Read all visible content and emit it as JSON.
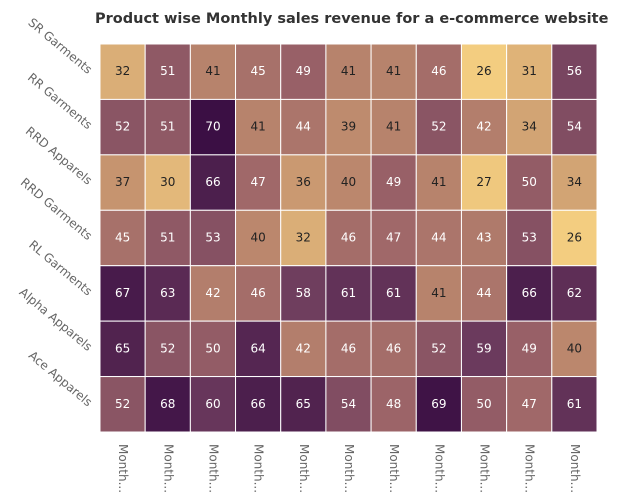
{
  "chart_data": {
    "type": "heatmap",
    "title": "Product wise Monthly sales revenue for a e-commerce website",
    "x": [
      "Month...",
      "Month...",
      "Month...",
      "Month...",
      "Month...",
      "Month...",
      "Month...",
      "Month...",
      "Month...",
      "Month...",
      "Month..."
    ],
    "y": [
      "SR Garments",
      "RR Garments",
      "RRD Apparels",
      "RRD Garments",
      "RL Garments",
      "Alpha Apparels",
      "Ace Apparels"
    ],
    "values": [
      [
        32,
        51,
        41,
        45,
        49,
        41,
        41,
        46,
        26,
        31,
        56
      ],
      [
        52,
        51,
        70,
        41,
        44,
        39,
        41,
        52,
        42,
        34,
        54
      ],
      [
        37,
        30,
        66,
        47,
        36,
        40,
        49,
        41,
        27,
        50,
        34
      ],
      [
        45,
        51,
        53,
        40,
        32,
        46,
        47,
        44,
        43,
        53,
        26
      ],
      [
        67,
        63,
        42,
        46,
        58,
        61,
        61,
        41,
        44,
        66,
        62
      ],
      [
        65,
        52,
        50,
        64,
        42,
        46,
        46,
        52,
        59,
        49,
        40
      ],
      [
        52,
        68,
        60,
        66,
        65,
        54,
        48,
        69,
        50,
        47,
        61
      ]
    ],
    "colors": [
      "#f3cd80",
      "#c6946f",
      "#9c6468",
      "#6b3a5d",
      "#3b0f44"
    ]
  }
}
